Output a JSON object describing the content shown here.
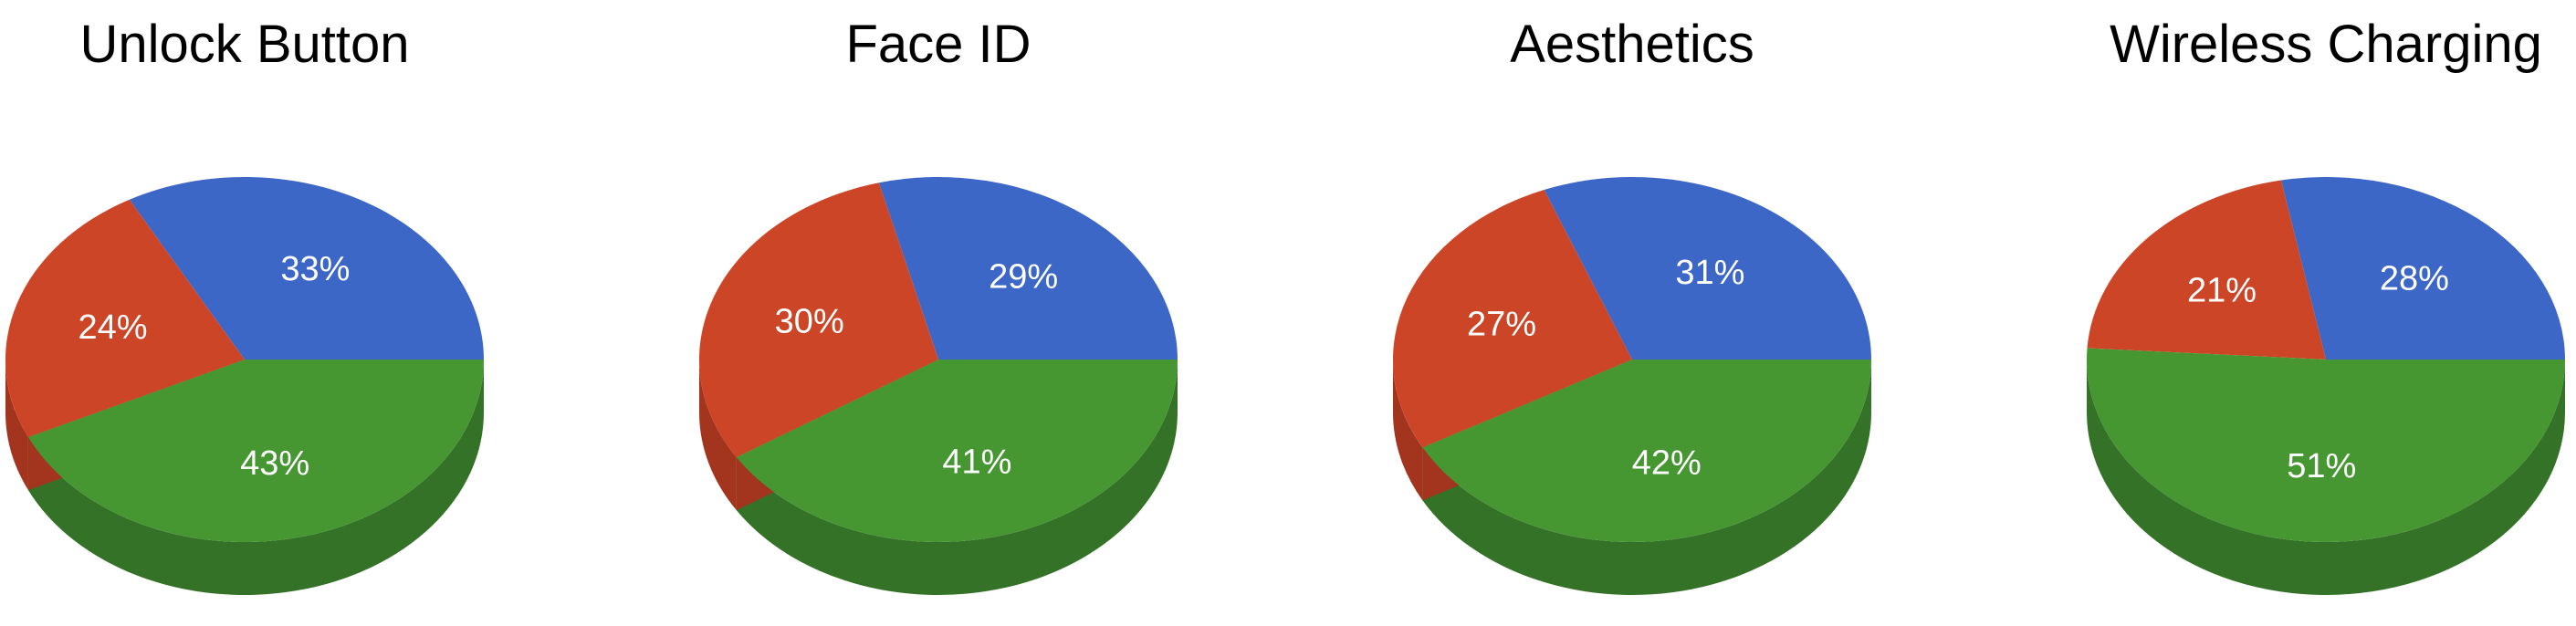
{
  "colors": {
    "blue": "#3d67c7",
    "red": "#cc4527",
    "green": "#469632",
    "blue_dark": "#2c4f9e",
    "red_dark": "#a3341d",
    "green_dark": "#347327"
  },
  "chart_data": [
    {
      "type": "pie",
      "style": "3d",
      "title": "Unlock Button",
      "slices": [
        {
          "value": 33,
          "label": "33%",
          "color": "blue"
        },
        {
          "value": 24,
          "label": "24%",
          "color": "red"
        },
        {
          "value": 43,
          "label": "43%",
          "color": "green"
        }
      ]
    },
    {
      "type": "pie",
      "style": "3d",
      "title": "Face ID",
      "slices": [
        {
          "value": 29,
          "label": "29%",
          "color": "blue"
        },
        {
          "value": 30,
          "label": "30%",
          "color": "red"
        },
        {
          "value": 41,
          "label": "41%",
          "color": "green"
        }
      ]
    },
    {
      "type": "pie",
      "style": "3d",
      "title": "Aesthetics",
      "slices": [
        {
          "value": 31,
          "label": "31%",
          "color": "blue"
        },
        {
          "value": 27,
          "label": "27%",
          "color": "red"
        },
        {
          "value": 42,
          "label": "42%",
          "color": "green"
        }
      ]
    },
    {
      "type": "pie",
      "style": "3d",
      "title": "Wireless Charging",
      "slices": [
        {
          "value": 28,
          "label": "28%",
          "color": "blue"
        },
        {
          "value": 21,
          "label": "21%",
          "color": "red"
        },
        {
          "value": 51,
          "label": "51%",
          "color": "green"
        }
      ]
    }
  ]
}
